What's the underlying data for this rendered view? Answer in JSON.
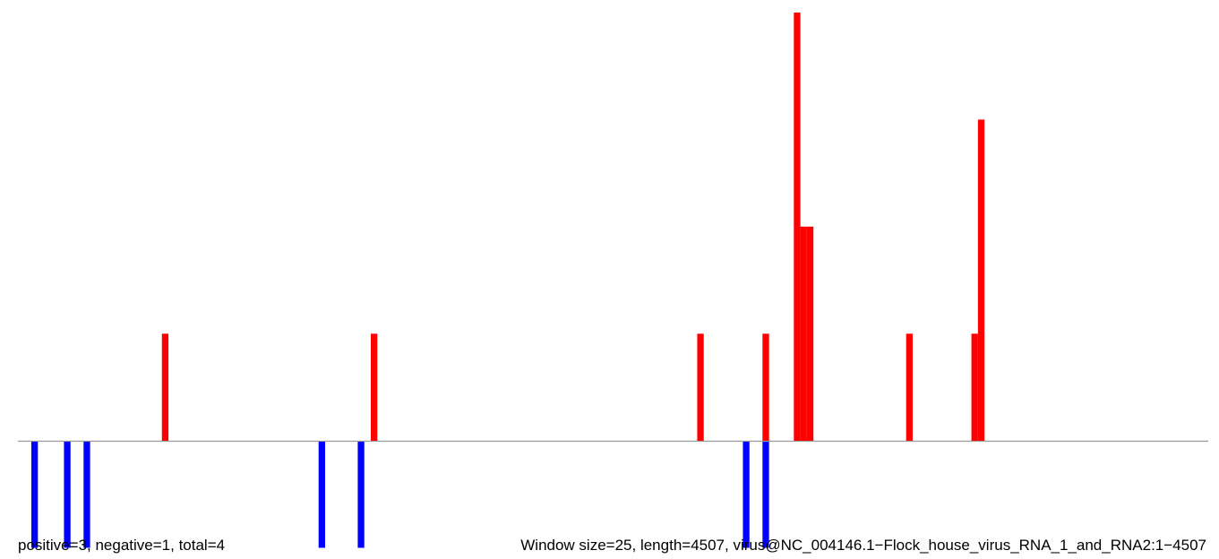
{
  "chart_data": {
    "type": "bar",
    "x_range": [
      0,
      4507
    ],
    "ylim": [
      -1,
      4
    ],
    "grid": false,
    "colors": {
      "positive": "#ff0000",
      "negative": "#0000ff",
      "baseline": "#999999"
    },
    "positive_bars": [
      {
        "x": 500,
        "y": 1
      },
      {
        "x": 1300,
        "y": 1
      },
      {
        "x": 2550,
        "y": 1
      },
      {
        "x": 2800,
        "y": 1
      },
      {
        "x": 2920,
        "y": 4
      },
      {
        "x": 2945,
        "y": 2
      },
      {
        "x": 2970,
        "y": 2
      },
      {
        "x": 3350,
        "y": 1
      },
      {
        "x": 3600,
        "y": 1
      },
      {
        "x": 3625,
        "y": 3
      }
    ],
    "negative_bars": [
      {
        "x": 0,
        "y": -1
      },
      {
        "x": 125,
        "y": -1
      },
      {
        "x": 200,
        "y": -1
      },
      {
        "x": 1100,
        "y": -1
      },
      {
        "x": 1250,
        "y": -1
      },
      {
        "x": 2725,
        "y": -1
      },
      {
        "x": 2800,
        "y": -1
      }
    ],
    "stats_text": "positive=3, negative=1, total=4",
    "info_text": "Window size=25, length=4507, virus@NC_004146.1−Flock_house_virus_RNA_1_and_RNA2:1−4507"
  }
}
